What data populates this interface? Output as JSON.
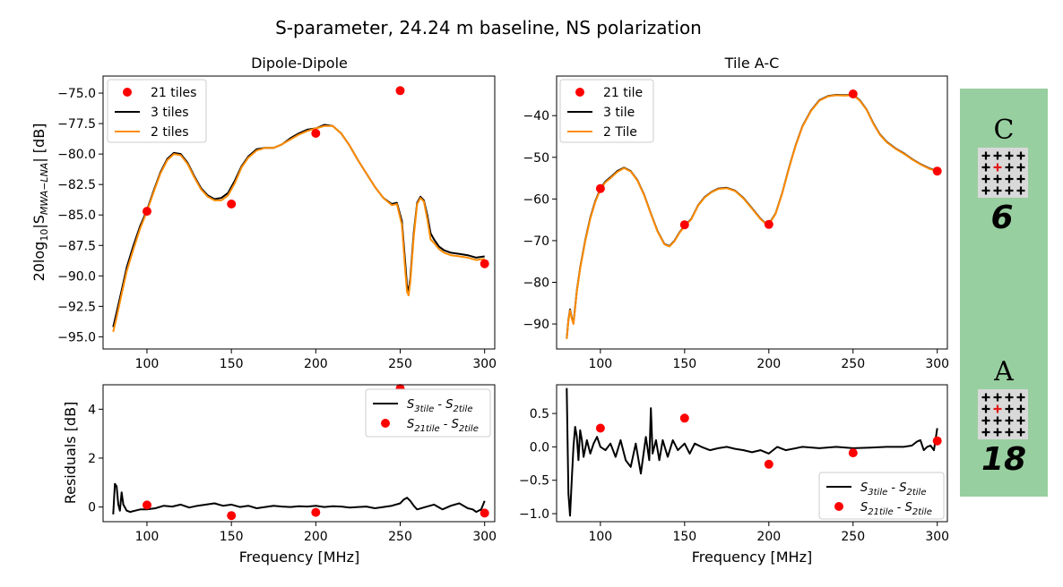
{
  "figure": {
    "title": "S-parameter, 24.24 m baseline, NS polarization",
    "xlabel": "Frequency [MHz]"
  },
  "colors": {
    "dots": "#ff0000",
    "three_tile": "#000000",
    "two_tile": "#ff8c00",
    "side_panel": "#98cfa0",
    "side_cross": "#e01818"
  },
  "chart_data": [
    {
      "type": "line",
      "id": "dipole_main",
      "title": "Dipole-Dipole",
      "ylabel_prefix": "20log",
      "ylabel_sub": "10",
      "ylabel_mid": "|S",
      "ylabel_sub2": "MWA−LNA",
      "ylabel_suffix": "| [dB]",
      "xlim": [
        74,
        306
      ],
      "ylim": [
        -96,
        -73.6
      ],
      "xticks": [
        100,
        150,
        200,
        250,
        300
      ],
      "yticks": [
        -75.0,
        -77.5,
        -80.0,
        -82.5,
        -85.0,
        -87.5,
        -90.0,
        -92.5,
        -95.0
      ],
      "ytick_labels": [
        "−75.0",
        "−77.5",
        "−80.0",
        "−82.5",
        "−85.0",
        "−87.5",
        "−90.0",
        "−92.5",
        "−95.0"
      ],
      "legend": [
        "21 tiles",
        "3 tiles",
        "2 tiles"
      ],
      "dots": {
        "name": "21 tiles",
        "x": [
          100,
          150,
          200,
          250,
          300
        ],
        "y": [
          -84.7,
          -84.1,
          -78.3,
          -74.8,
          -89.0
        ]
      },
      "series": [
        {
          "name": "3 tiles",
          "x": [
            80,
            82,
            85,
            88,
            92,
            96,
            100,
            104,
            108,
            112,
            116,
            120,
            124,
            128,
            132,
            136,
            140,
            144,
            148,
            152,
            156,
            160,
            165,
            170,
            175,
            180,
            185,
            190,
            195,
            200,
            205,
            210,
            215,
            220,
            225,
            230,
            235,
            240,
            245,
            248,
            251,
            253,
            254,
            255,
            256,
            258,
            260,
            262,
            264,
            266,
            268,
            270,
            273,
            276,
            280,
            285,
            290,
            295,
            300
          ],
          "y": [
            -94.2,
            -93.0,
            -91.2,
            -89.3,
            -87.5,
            -85.9,
            -84.6,
            -83.0,
            -81.5,
            -80.4,
            -79.9,
            -80.0,
            -80.7,
            -81.8,
            -82.8,
            -83.4,
            -83.7,
            -83.6,
            -83.2,
            -82.2,
            -81.0,
            -80.2,
            -79.6,
            -79.5,
            -79.5,
            -79.2,
            -78.7,
            -78.3,
            -78.0,
            -77.9,
            -77.6,
            -77.7,
            -78.3,
            -79.3,
            -80.5,
            -81.6,
            -82.7,
            -83.6,
            -84.1,
            -84.0,
            -85.5,
            -89.0,
            -90.8,
            -91.2,
            -90.2,
            -86.5,
            -84.0,
            -83.5,
            -83.8,
            -85.0,
            -86.5,
            -87.0,
            -87.6,
            -87.9,
            -88.1,
            -88.2,
            -88.3,
            -88.5,
            -88.4
          ]
        },
        {
          "name": "2 tiles",
          "x": [
            80,
            82,
            85,
            88,
            92,
            96,
            100,
            104,
            108,
            112,
            116,
            120,
            124,
            128,
            132,
            136,
            140,
            144,
            148,
            152,
            156,
            160,
            165,
            170,
            175,
            180,
            185,
            190,
            195,
            200,
            205,
            210,
            215,
            220,
            225,
            230,
            235,
            240,
            245,
            248,
            251,
            253,
            254,
            255,
            256,
            258,
            260,
            262,
            264,
            266,
            268,
            270,
            273,
            276,
            280,
            285,
            290,
            295,
            300
          ],
          "y": [
            -94.6,
            -93.4,
            -91.5,
            -89.6,
            -87.8,
            -86.1,
            -84.7,
            -83.1,
            -81.6,
            -80.5,
            -80.0,
            -80.1,
            -80.8,
            -81.9,
            -82.9,
            -83.5,
            -83.8,
            -83.8,
            -83.4,
            -82.4,
            -81.1,
            -80.3,
            -79.7,
            -79.5,
            -79.5,
            -79.2,
            -78.8,
            -78.4,
            -78.1,
            -77.9,
            -77.7,
            -77.7,
            -78.3,
            -79.3,
            -80.5,
            -81.6,
            -82.7,
            -83.6,
            -84.2,
            -84.1,
            -85.8,
            -89.6,
            -91.3,
            -91.6,
            -90.5,
            -86.8,
            -84.1,
            -83.6,
            -83.9,
            -85.3,
            -87.0,
            -87.3,
            -87.8,
            -88.1,
            -88.3,
            -88.4,
            -88.5,
            -88.7,
            -88.6
          ]
        }
      ]
    },
    {
      "type": "line",
      "id": "tile_main",
      "title": "Tile A-C",
      "xlim": [
        74,
        306
      ],
      "ylim": [
        -96,
        -30.5
      ],
      "xticks": [
        100,
        150,
        200,
        250,
        300
      ],
      "yticks": [
        -40,
        -50,
        -60,
        -70,
        -80,
        -90
      ],
      "ytick_labels": [
        "−40",
        "−50",
        "−60",
        "−70",
        "−80",
        "−90"
      ],
      "legend": [
        "21 tile",
        "3 tile",
        "2 Tile"
      ],
      "dots": {
        "name": "21 tile",
        "x": [
          100,
          150,
          200,
          250,
          300
        ],
        "y": [
          -57.5,
          -66.2,
          -66.1,
          -34.8,
          -53.3
        ]
      },
      "series": [
        {
          "name": "3 tile",
          "x": [
            80,
            81,
            82,
            83,
            84,
            85,
            86,
            88,
            91,
            94,
            97,
            100,
            103,
            106,
            110,
            114,
            118,
            122,
            126,
            130,
            134,
            138,
            141,
            144,
            147,
            150,
            154,
            158,
            162,
            166,
            170,
            175,
            180,
            185,
            190,
            195,
            198,
            200,
            204,
            208,
            212,
            216,
            220,
            225,
            230,
            235,
            240,
            245,
            250,
            254,
            258,
            262,
            266,
            270,
            275,
            280,
            285,
            290,
            295,
            300
          ],
          "y": [
            -93.5,
            -89.0,
            -86.5,
            -88.5,
            -89.8,
            -86.0,
            -82.0,
            -76.5,
            -70.0,
            -64.5,
            -60.5,
            -57.5,
            -55.8,
            -54.8,
            -53.3,
            -52.5,
            -53.3,
            -55.5,
            -59.0,
            -63.5,
            -67.8,
            -70.8,
            -71.3,
            -70.0,
            -68.0,
            -66.5,
            -64.8,
            -61.5,
            -59.5,
            -58.3,
            -57.5,
            -57.3,
            -58.0,
            -59.8,
            -62.2,
            -64.7,
            -65.8,
            -66.0,
            -63.5,
            -58.5,
            -52.5,
            -47.0,
            -42.5,
            -38.8,
            -36.3,
            -35.3,
            -35.0,
            -35.1,
            -35.0,
            -36.3,
            -38.5,
            -41.8,
            -44.5,
            -46.3,
            -47.8,
            -49.0,
            -50.4,
            -51.6,
            -52.6,
            -53.3
          ]
        },
        {
          "name": "2 Tile",
          "x": [
            80,
            81,
            82,
            83,
            84,
            85,
            86,
            88,
            91,
            94,
            97,
            100,
            103,
            106,
            110,
            114,
            118,
            122,
            126,
            130,
            134,
            138,
            141,
            144,
            147,
            150,
            154,
            158,
            162,
            166,
            170,
            175,
            180,
            185,
            190,
            195,
            198,
            200,
            204,
            208,
            212,
            216,
            220,
            225,
            230,
            235,
            240,
            245,
            250,
            254,
            258,
            262,
            266,
            270,
            275,
            280,
            285,
            290,
            295,
            300
          ],
          "y": [
            -93.6,
            -89.2,
            -86.7,
            -88.7,
            -90.0,
            -86.2,
            -82.2,
            -76.7,
            -70.2,
            -64.7,
            -60.7,
            -57.7,
            -56.0,
            -55.0,
            -53.5,
            -52.6,
            -53.4,
            -55.6,
            -59.1,
            -63.6,
            -67.9,
            -70.9,
            -71.4,
            -70.1,
            -68.1,
            -66.6,
            -64.9,
            -61.6,
            -59.6,
            -58.4,
            -57.6,
            -57.4,
            -58.1,
            -59.9,
            -62.3,
            -64.8,
            -65.9,
            -66.1,
            -63.6,
            -58.6,
            -52.6,
            -47.1,
            -42.6,
            -38.9,
            -36.4,
            -35.4,
            -35.1,
            -35.2,
            -35.1,
            -36.4,
            -38.6,
            -41.9,
            -44.6,
            -46.4,
            -47.9,
            -49.1,
            -50.5,
            -51.7,
            -52.7,
            -53.4
          ]
        }
      ]
    },
    {
      "type": "line",
      "id": "dipole_resid",
      "ylabel": "Residuals [dB]",
      "xlim": [
        74,
        306
      ],
      "ylim": [
        -0.6,
        5.0
      ],
      "xticks": [
        100,
        150,
        200,
        250,
        300
      ],
      "yticks": [
        0,
        2,
        4
      ],
      "ytick_labels": [
        "0",
        "2",
        "4"
      ],
      "legend": [
        "S3tile - S2tile",
        "S21tile - S2tile"
      ],
      "dots": {
        "name": "S21tile - S2tile",
        "x": [
          100,
          150,
          200,
          250,
          300
        ],
        "y": [
          0.08,
          -0.35,
          -0.22,
          4.85,
          -0.25
        ]
      },
      "series": [
        {
          "name": "S3tile - S2tile",
          "x": [
            80,
            81,
            82,
            83,
            84,
            85,
            86,
            88,
            90,
            93,
            96,
            100,
            105,
            110,
            115,
            120,
            125,
            130,
            135,
            140,
            145,
            150,
            155,
            160,
            165,
            170,
            175,
            180,
            185,
            190,
            195,
            200,
            205,
            210,
            215,
            220,
            225,
            230,
            235,
            240,
            245,
            250,
            252,
            254,
            256,
            258,
            260,
            265,
            270,
            275,
            280,
            285,
            290,
            293,
            295,
            298,
            300
          ],
          "y": [
            -0.3,
            0.95,
            0.85,
            0.1,
            -0.15,
            0.6,
            0.1,
            -0.15,
            -0.2,
            -0.15,
            -0.1,
            -0.1,
            -0.05,
            0.05,
            0.02,
            0.1,
            -0.02,
            0.05,
            0.1,
            0.15,
            0.05,
            0.1,
            0.0,
            0.05,
            -0.05,
            0.0,
            0.05,
            0.02,
            0.0,
            0.03,
            0.02,
            0.05,
            0.0,
            0.03,
            0.02,
            -0.02,
            0.0,
            0.02,
            -0.05,
            0.0,
            0.05,
            0.15,
            0.3,
            0.38,
            0.25,
            0.05,
            -0.1,
            0.0,
            0.1,
            -0.1,
            0.05,
            0.15,
            -0.05,
            -0.1,
            -0.2,
            -0.1,
            0.25
          ]
        }
      ]
    },
    {
      "type": "line",
      "id": "tile_resid",
      "xlim": [
        74,
        306
      ],
      "ylim": [
        -1.12,
        0.93
      ],
      "xticks": [
        100,
        150,
        200,
        250,
        300
      ],
      "yticks": [
        0.5,
        0.0,
        -0.5,
        -1.0
      ],
      "ytick_labels": [
        "0.5",
        "0.0",
        "−0.5",
        "−1.0"
      ],
      "legend": [
        "S3tile - S2tile",
        "S21tile - S2tile"
      ],
      "dots": {
        "name": "S21tile - S2tile",
        "x": [
          100,
          150,
          200,
          250,
          300
        ],
        "y": [
          0.28,
          0.43,
          -0.26,
          -0.09,
          0.09
        ]
      },
      "series": [
        {
          "name": "S3tile - S2tile",
          "x": [
            80,
            81,
            82,
            83,
            84,
            85,
            86,
            87,
            88,
            89,
            90,
            92,
            94,
            96,
            98,
            100,
            103,
            106,
            109,
            112,
            115,
            118,
            121,
            124,
            127,
            129,
            130,
            131,
            133,
            135,
            137,
            140,
            143,
            146,
            150,
            153,
            156,
            160,
            165,
            170,
            175,
            180,
            185,
            190,
            195,
            200,
            205,
            210,
            220,
            230,
            240,
            250,
            260,
            270,
            280,
            285,
            288,
            290,
            292,
            294,
            296,
            298,
            300
          ],
          "y": [
            0.88,
            -0.7,
            -1.03,
            -0.5,
            0.0,
            0.3,
            0.15,
            -0.2,
            0.25,
            0.1,
            -0.15,
            0.1,
            -0.1,
            0.05,
            0.15,
            0.0,
            -0.05,
            0.05,
            -0.15,
            0.1,
            -0.2,
            -0.3,
            0.05,
            -0.4,
            0.15,
            -0.2,
            0.58,
            -0.1,
            0.1,
            -0.2,
            0.1,
            -0.15,
            0.1,
            -0.05,
            0.05,
            -0.1,
            0.05,
            0.0,
            -0.05,
            -0.02,
            0.0,
            -0.03,
            -0.05,
            -0.08,
            -0.05,
            -0.1,
            0.0,
            -0.05,
            0.0,
            -0.02,
            0.0,
            -0.02,
            -0.01,
            0.0,
            0.0,
            0.02,
            0.08,
            0.1,
            -0.05,
            0.0,
            0.02,
            -0.05,
            0.28
          ]
        }
      ]
    }
  ],
  "side_panel": {
    "top_label": "C",
    "top_number": "6",
    "bottom_label": "A",
    "bottom_number": "18"
  }
}
